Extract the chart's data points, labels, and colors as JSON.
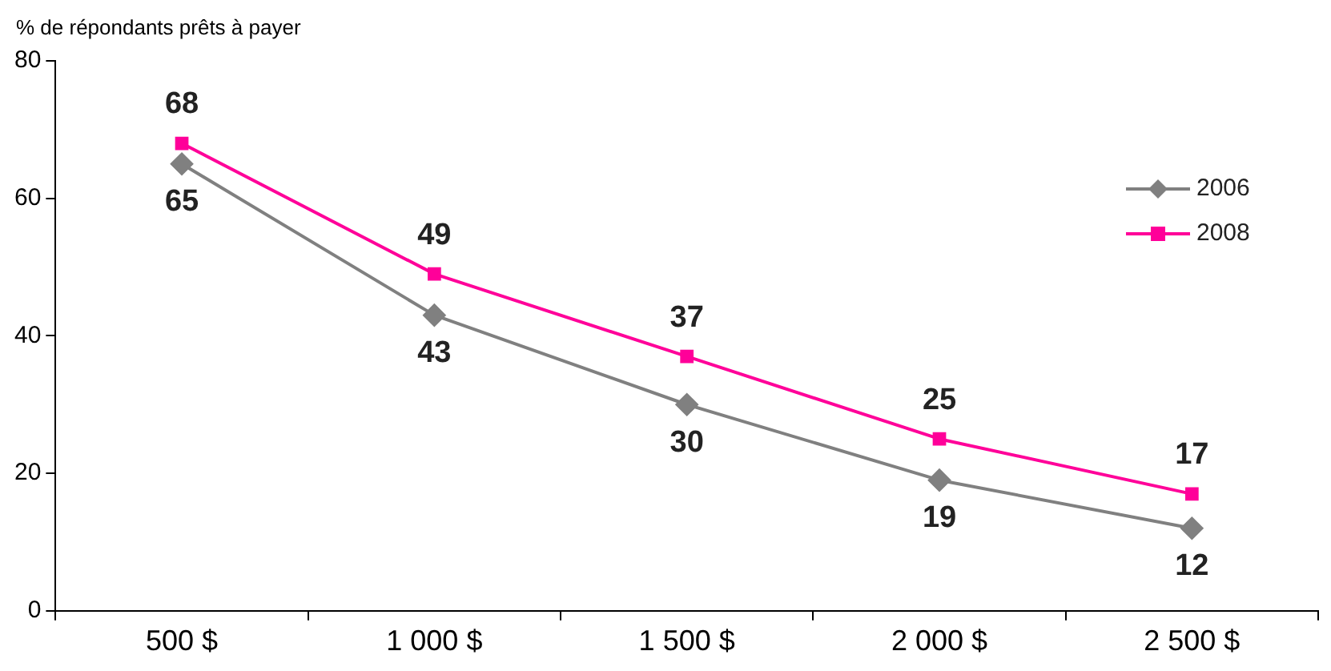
{
  "chart_data": {
    "type": "line",
    "ylabel": "% de répondants prêts à payer",
    "categories": [
      "500 $",
      "1 000 $",
      "1 500 $",
      "2 000 $",
      "2 500 $"
    ],
    "series": [
      {
        "name": "2006",
        "color": "#808080",
        "marker": "diamond",
        "values": [
          65,
          43,
          30,
          19,
          12
        ]
      },
      {
        "name": "2008",
        "color": "#ff0099",
        "marker": "square",
        "values": [
          68,
          49,
          37,
          25,
          17
        ]
      }
    ],
    "ylim": [
      0,
      80
    ],
    "yticks": [
      0,
      20,
      40,
      60,
      80
    ],
    "grid": false,
    "legend": "right",
    "data_labels": true,
    "line_style": "solid"
  }
}
